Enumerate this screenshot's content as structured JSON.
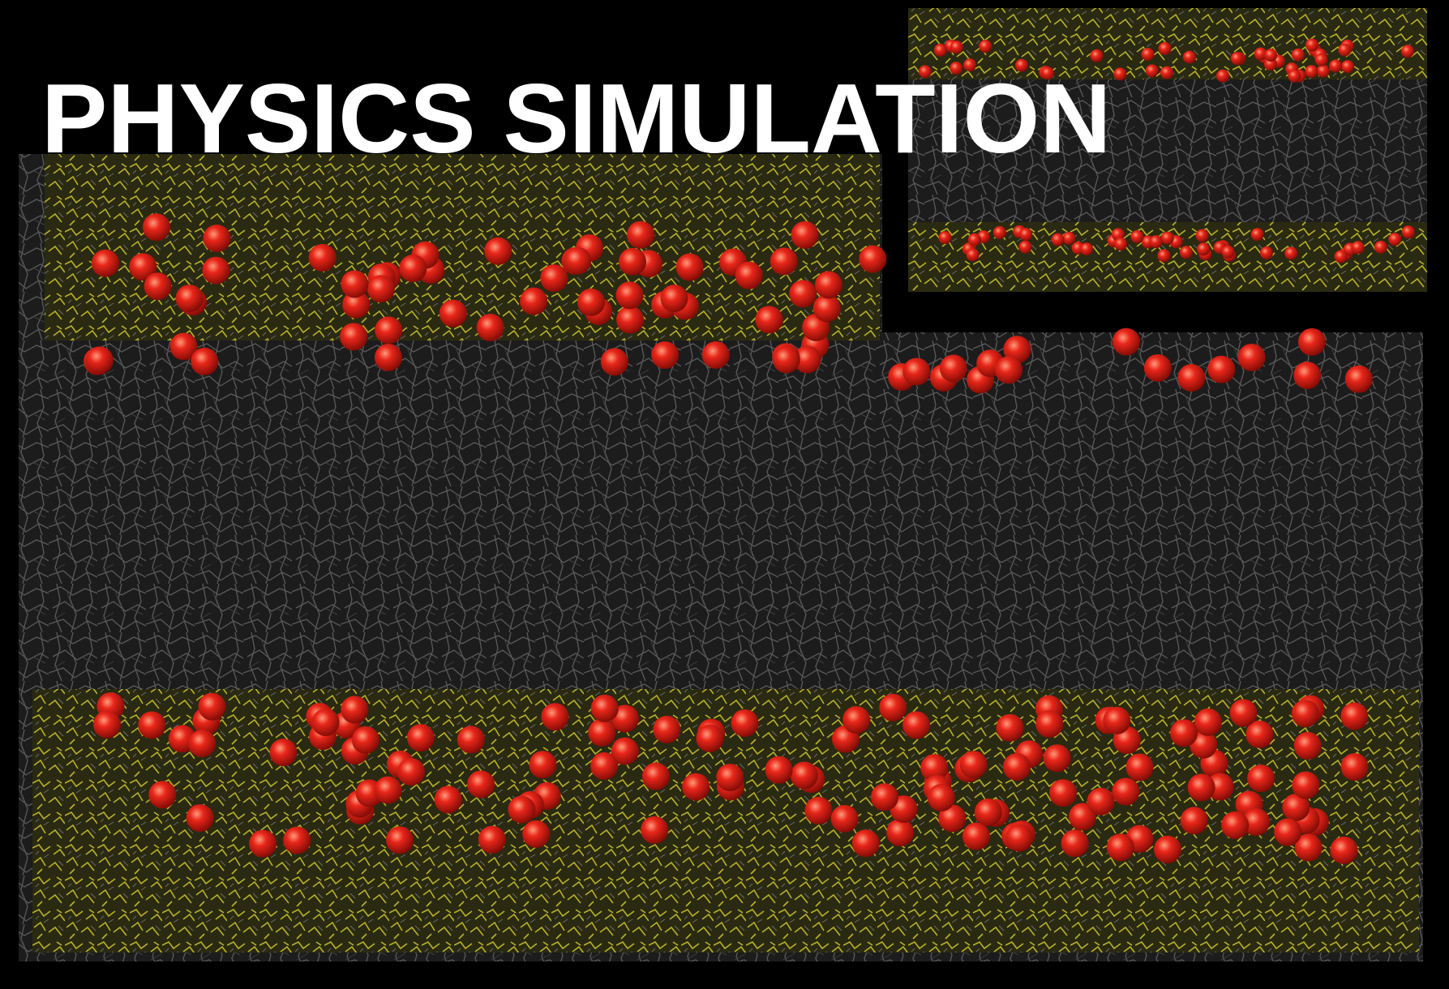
{
  "title": "PHYSICS SIMULATION"
}
